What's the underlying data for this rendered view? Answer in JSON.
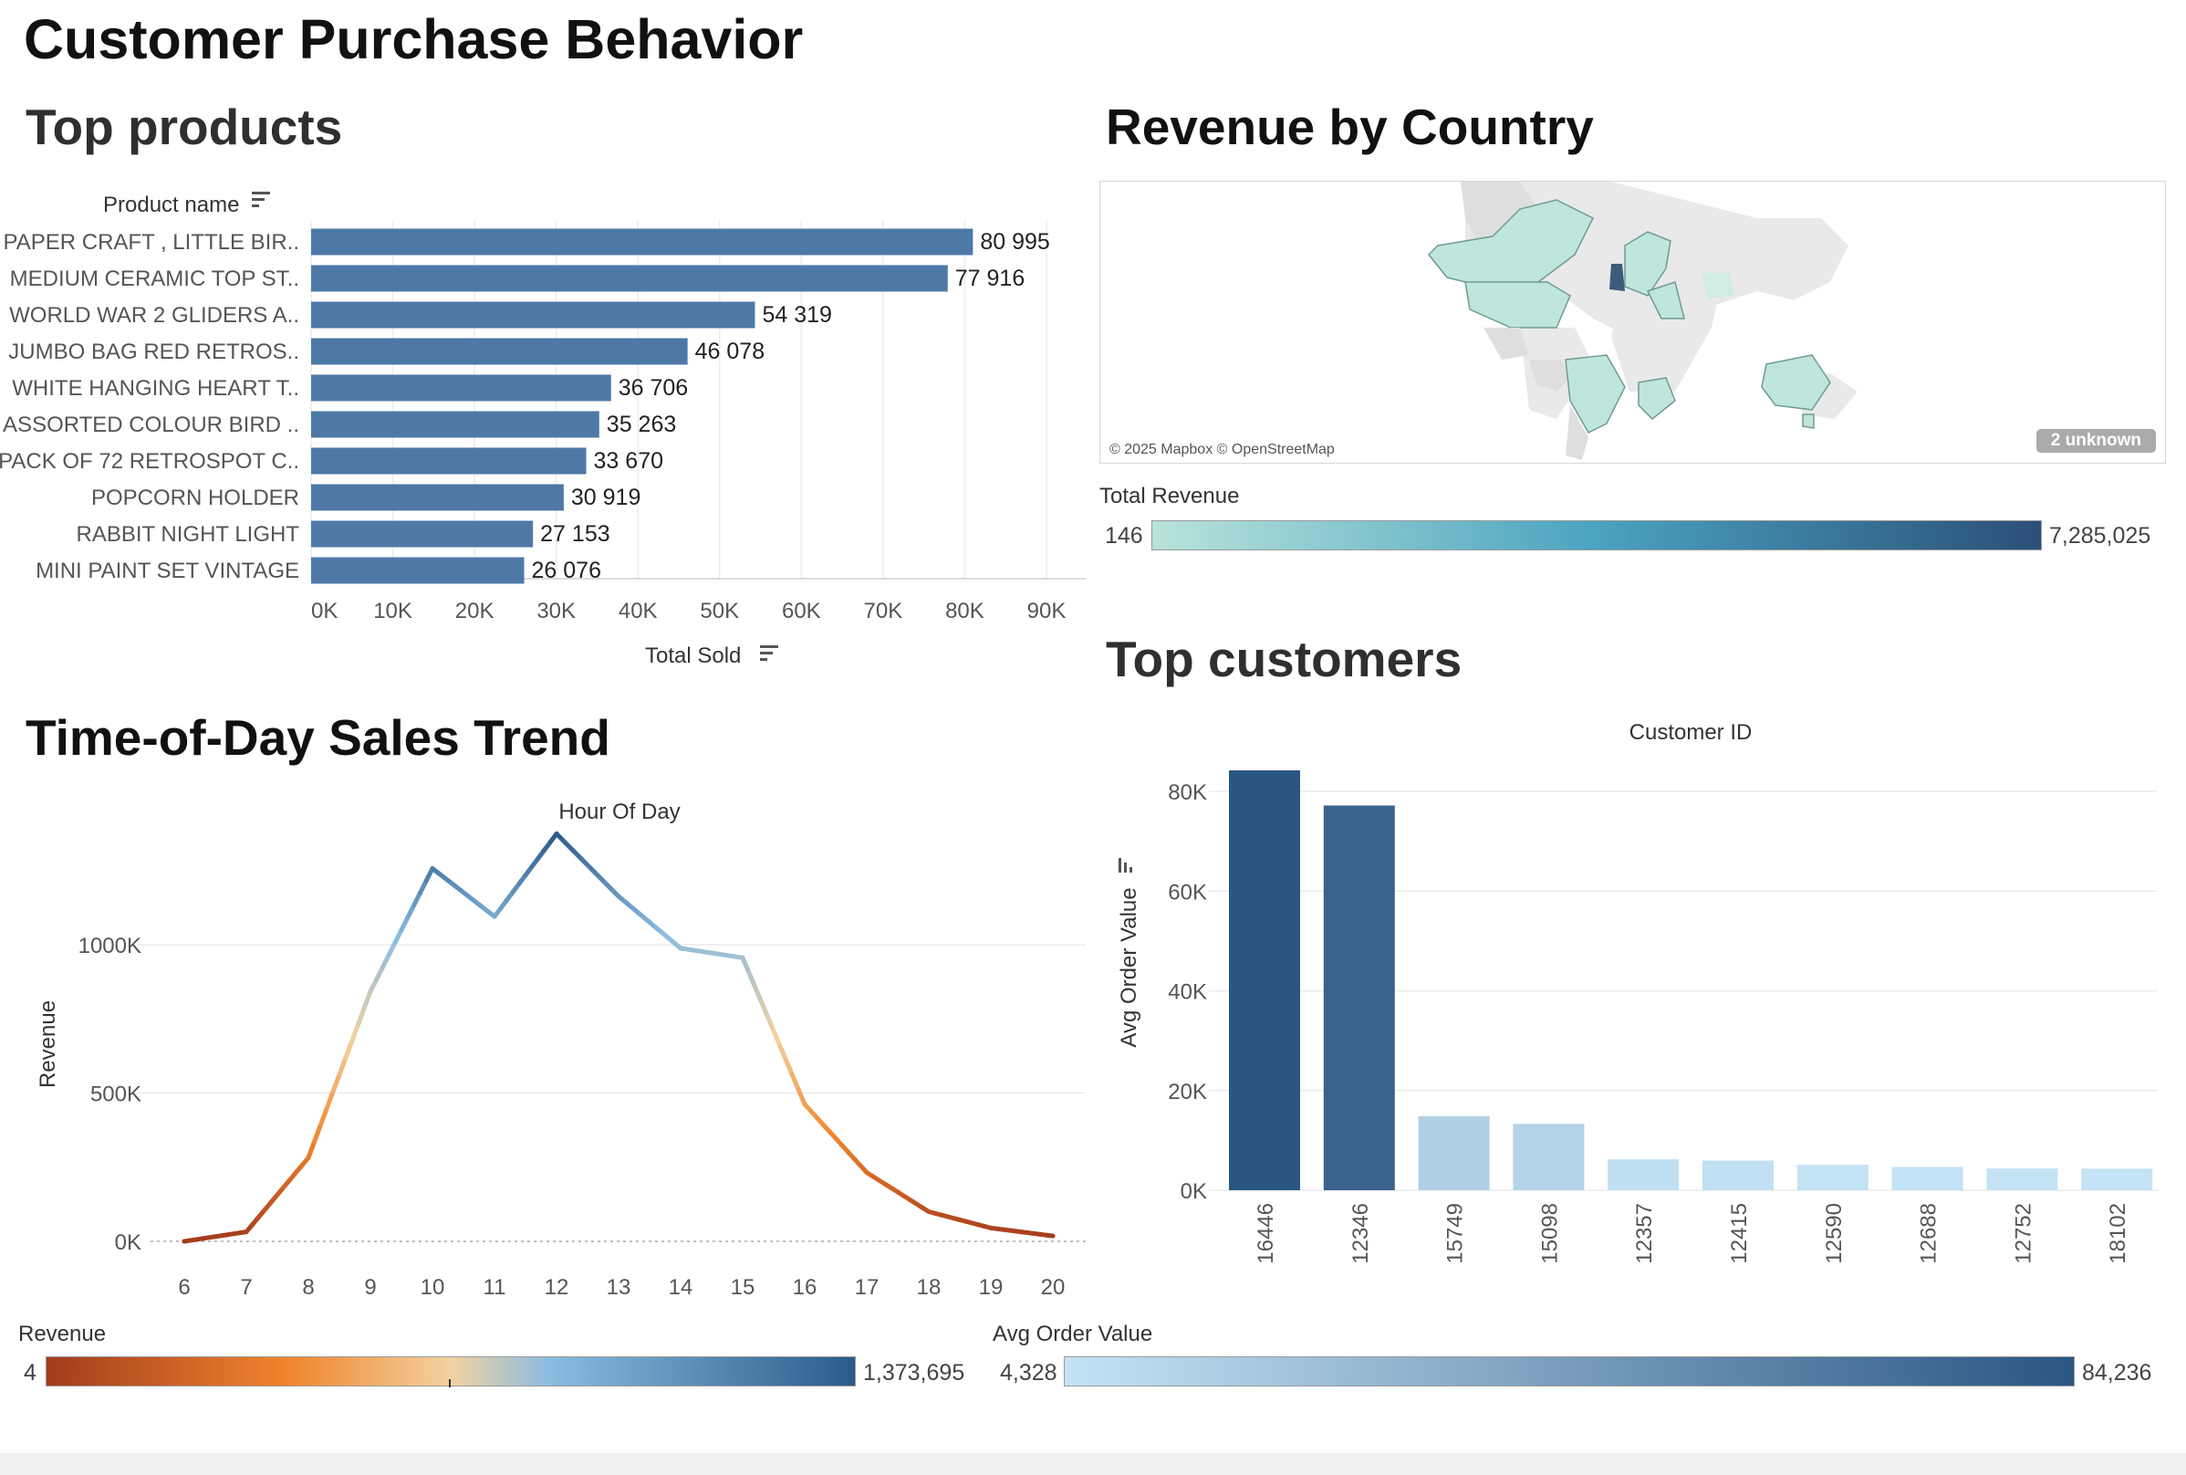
{
  "dashboard": {
    "title": "Customer Purchase Behavior"
  },
  "top_products": {
    "title": "Top products",
    "row_header": "Product name",
    "axis_title": "Total Sold",
    "bar_color": "#4e79a7"
  },
  "revenue_by_country": {
    "title": "Revenue by Country",
    "attribution": "© 2025 Mapbox © OpenStreetMap",
    "unknown_label": "2 unknown",
    "legend_title": "Total Revenue",
    "legend_min": "146",
    "legend_max": "7,285,025",
    "color_low": "#b9e3da",
    "color_mid": "#4aa3c0",
    "color_high": "#2b4f78"
  },
  "time_of_day": {
    "title": "Time-of-Day Sales Trend",
    "axis_top_title": "Hour Of Day",
    "legend_title": "Revenue",
    "legend_min": "4",
    "legend_max": "1,373,695"
  },
  "top_customers": {
    "title": "Top customers",
    "legend_title": "Avg Order Value",
    "legend_min": "4,328",
    "legend_max": "84,236"
  },
  "chart_data": [
    {
      "type": "bar",
      "orientation": "horizontal",
      "categories": [
        "PAPER CRAFT , LITTLE BIR..",
        "MEDIUM CERAMIC TOP ST..",
        "WORLD WAR 2 GLIDERS A..",
        "JUMBO BAG RED RETROS..",
        "WHITE HANGING HEART T..",
        "ASSORTED COLOUR BIRD ..",
        "PACK OF 72 RETROSPOT C..",
        "POPCORN HOLDER",
        "RABBIT NIGHT LIGHT",
        "MINI PAINT SET VINTAGE"
      ],
      "values": [
        80995,
        77916,
        54319,
        46078,
        36706,
        35263,
        33670,
        30919,
        27153,
        26076
      ],
      "value_labels": [
        "80 995",
        "77 916",
        "54 319",
        "46 078",
        "36 706",
        "35 263",
        "33 670",
        "30 919",
        "27 153",
        "26 076"
      ],
      "xlabel": "Total Sold",
      "xlim": [
        0,
        90000
      ],
      "xticks": [
        0,
        10000,
        20000,
        30000,
        40000,
        50000,
        60000,
        70000,
        80000,
        90000
      ],
      "xtick_labels": [
        "0K",
        "10K",
        "20K",
        "30K",
        "40K",
        "50K",
        "60K",
        "70K",
        "80K",
        "90K"
      ],
      "grid": "vertical"
    },
    {
      "type": "line",
      "x": [
        6,
        7,
        8,
        9,
        10,
        11,
        12,
        13,
        14,
        15,
        16,
        17,
        18,
        19,
        20
      ],
      "y": [
        4,
        32000,
        282000,
        842000,
        1257000,
        1095000,
        1373695,
        1163000,
        988000,
        956000,
        462000,
        232000,
        100000,
        45000,
        18000
      ],
      "xlabel": "Hour Of Day",
      "ylabel": "Revenue",
      "ylim": [
        0,
        1400000
      ],
      "yticks": [
        0,
        500000,
        1000000
      ],
      "ytick_labels": [
        "0K",
        "500K",
        "1000K"
      ],
      "color_scale": {
        "min": 4,
        "max": 1373695,
        "low": "#a33b1c",
        "mid_low": "#f0852d",
        "mid": "#f2d2a0",
        "mid_high": "#8cbce0",
        "high": "#2b5b8a"
      },
      "grid": "horizontal"
    },
    {
      "type": "bar",
      "orientation": "vertical",
      "categories": [
        "16446",
        "12346",
        "15749",
        "15098",
        "12357",
        "12415",
        "12590",
        "12688",
        "12752",
        "18102"
      ],
      "values": [
        84236,
        77183,
        14845,
        13305,
        6208,
        5948,
        5086,
        4674,
        4356,
        4328
      ],
      "xlabel": "Customer ID",
      "ylabel": "Avg Order Value",
      "ylim": [
        0,
        84236
      ],
      "yticks": [
        0,
        20000,
        40000,
        60000,
        80000
      ],
      "ytick_labels": [
        "0K",
        "20K",
        "40K",
        "60K",
        "80K"
      ],
      "color_scale": {
        "min": 4328,
        "max": 84236,
        "low": "#c4e3f5",
        "high": "#2b5683"
      },
      "grid": "horizontal"
    }
  ]
}
